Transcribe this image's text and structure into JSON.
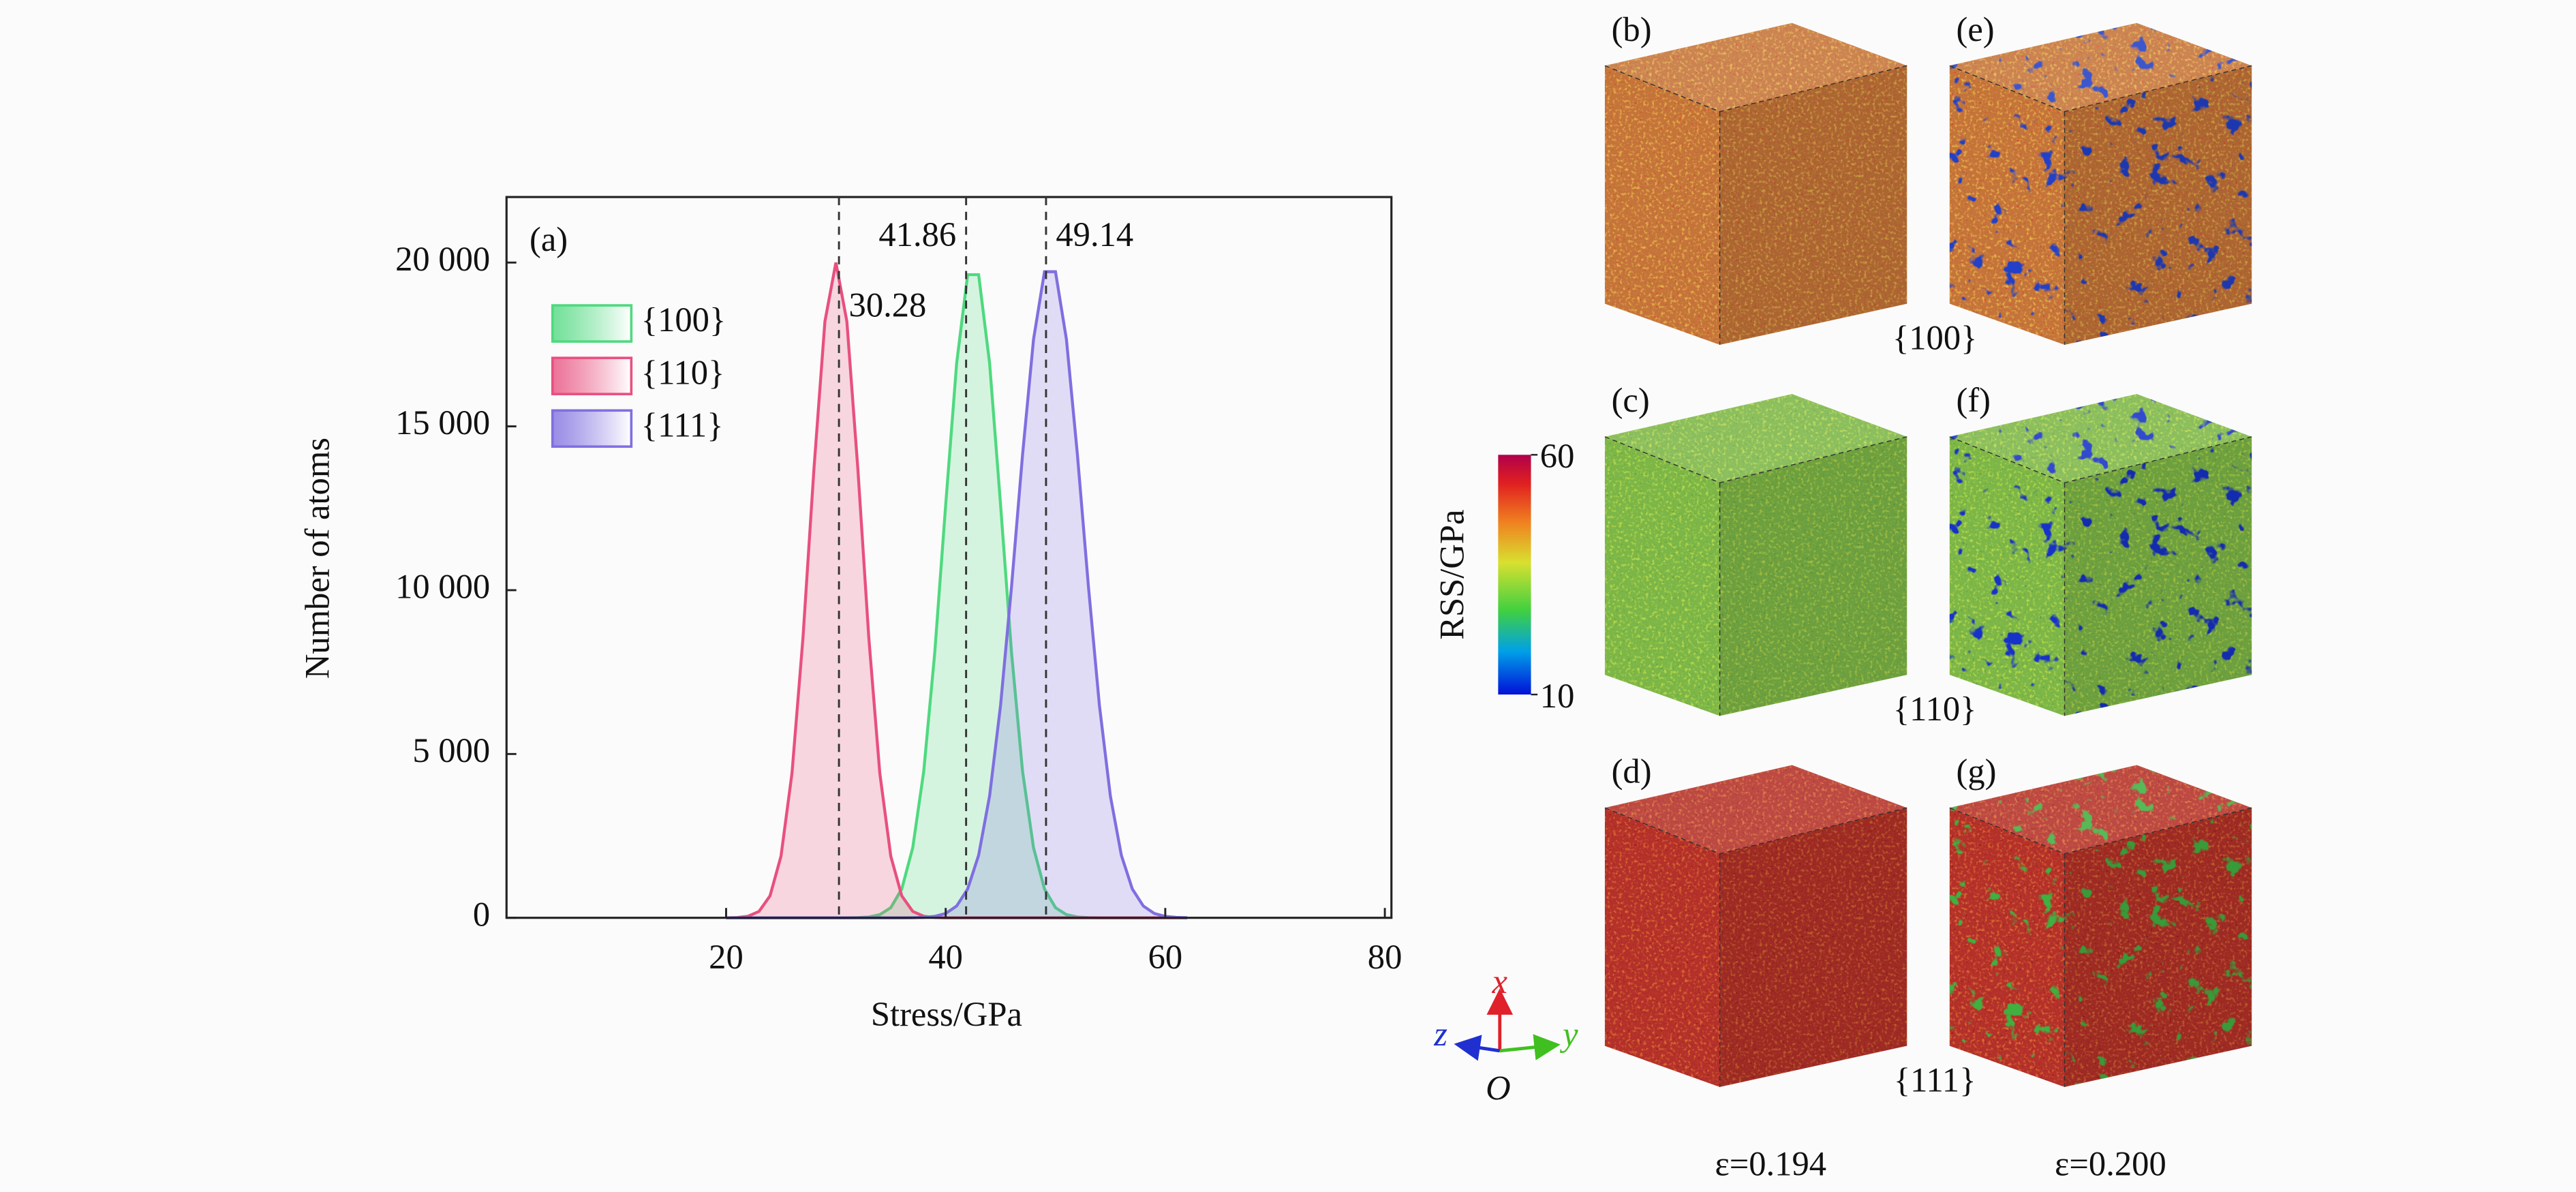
{
  "chart_data": {
    "type": "line",
    "panel_label": "(a)",
    "xlabel": "Stress/GPa",
    "ylabel": "Number of atoms",
    "xlim": [
      0,
      80.6
    ],
    "ylim": [
      0,
      22000
    ],
    "xticks": [
      20,
      40,
      60,
      80
    ],
    "yticks": [
      0,
      {
        "value": 5000,
        "label": "5 000"
      },
      {
        "value": 10000,
        "label": "10 000"
      },
      {
        "value": 15000,
        "label": "15 000"
      },
      {
        "value": 20000,
        "label": "20 000"
      }
    ],
    "legend": "upper left",
    "x": [
      20,
      21,
      22,
      23,
      24,
      25,
      26,
      27,
      28,
      29,
      30,
      31,
      32,
      33,
      34,
      35,
      36,
      37,
      38,
      39,
      40,
      41,
      42,
      43,
      44,
      45,
      46,
      47,
      48,
      49,
      50,
      51,
      52,
      53,
      54,
      55,
      56,
      57,
      58,
      59,
      60,
      61,
      62
    ],
    "series": [
      {
        "name": "{100}",
        "color": "#4fd97f",
        "values": [
          0,
          0,
          0,
          0,
          0,
          0,
          0,
          0,
          0,
          0,
          0,
          0,
          6,
          25,
          96,
          310,
          880,
          2140,
          4470,
          8080,
          12600,
          16930,
          19630,
          19630,
          16930,
          12600,
          8080,
          4470,
          2140,
          880,
          310,
          96,
          25,
          6,
          0,
          0,
          0,
          0,
          0,
          0,
          0,
          0,
          0
        ]
      },
      {
        "name": "{110}",
        "color": "#e8507f",
        "values": [
          0,
          9,
          47,
          195,
          670,
          1880,
          4410,
          8540,
          13700,
          18200,
          20000,
          18200,
          13700,
          8540,
          4410,
          1880,
          670,
          195,
          47,
          9,
          0,
          0,
          0,
          0,
          0,
          0,
          0,
          0,
          0,
          0,
          0,
          0,
          0,
          0,
          0,
          0,
          0,
          0,
          0,
          0,
          0,
          0,
          0
        ]
      },
      {
        "name": "{111}",
        "color": "#7f6fe0",
        "values": [
          0,
          0,
          0,
          0,
          0,
          0,
          0,
          0,
          0,
          0,
          0,
          0,
          0,
          0,
          0,
          0,
          0,
          3,
          13,
          44,
          133,
          360,
          880,
          1910,
          3720,
          6490,
          10120,
          14130,
          17650,
          19720,
          19720,
          17650,
          14130,
          10120,
          6490,
          3720,
          1910,
          880,
          360,
          133,
          44,
          13,
          3
        ]
      }
    ],
    "vlines": [
      30.28,
      41.86,
      49.14
    ]
  },
  "figure": {
    "rows": [
      {
        "label": "{100}",
        "panels": [
          "(b)",
          "(e)"
        ]
      },
      {
        "label": "{110}",
        "panels": [
          "(c)",
          "(f)"
        ]
      },
      {
        "label": "{111}",
        "panels": [
          "(d)",
          "(g)"
        ]
      }
    ],
    "columns": [
      "ε=0.194",
      "ε=0.200"
    ],
    "colorbar": {
      "label": "RSS/GPa",
      "range": [
        10,
        60
      ],
      "ticks": [
        60,
        10
      ]
    },
    "axes": {
      "x": "x",
      "y": "y",
      "z": "z",
      "origin": "O"
    }
  }
}
